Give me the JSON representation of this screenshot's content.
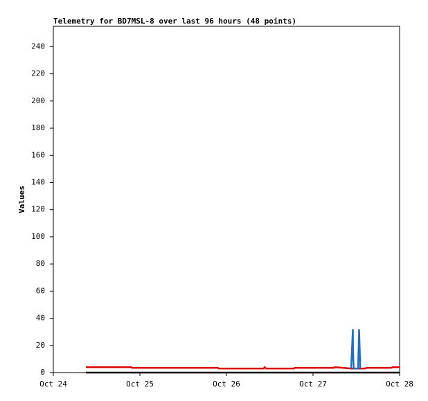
{
  "chart_data": {
    "type": "line",
    "title": "Telemetry for BD7MSL-8 over last 96 hours (48 points)",
    "y_label": "Values",
    "xlim": [
      0,
      4
    ],
    "xticks": [
      {
        "value": 0,
        "label": "Oct 24"
      },
      {
        "value": 1,
        "label": "Oct 25"
      },
      {
        "value": 2,
        "label": "Oct 26"
      },
      {
        "value": 3,
        "label": "Oct 27"
      },
      {
        "value": 4,
        "label": "Oct 28"
      }
    ],
    "ylim": [
      0,
      255
    ],
    "yticks": [
      0,
      20,
      40,
      60,
      80,
      100,
      120,
      140,
      160,
      180,
      200,
      220,
      240
    ],
    "series": [
      {
        "color": "#000000",
        "x": [
          0.376,
          4
        ],
        "values": [
          0,
          0
        ]
      },
      {
        "color": "#dd0000",
        "x": [
          0.376,
          0.9,
          0.91,
          1.9,
          1.91,
          2.43,
          2.44,
          2.46,
          2.56,
          2.78,
          2.79,
          3.24,
          3.25,
          3.44,
          3.6,
          3.62,
          3.9,
          3.92,
          4
        ],
        "values": [
          4,
          4,
          3.5,
          3.5,
          3,
          3,
          4,
          3,
          3,
          3,
          3.5,
          3.5,
          4,
          3,
          3,
          3.5,
          3.5,
          4,
          4
        ]
      },
      {
        "color": "#1f6fc5",
        "x": [
          3.44,
          3.46,
          3.462,
          3.47,
          3.52,
          3.532,
          3.54,
          3.545
        ],
        "values": [
          3,
          32,
          16,
          3,
          3,
          32,
          16,
          3
        ]
      }
    ]
  }
}
